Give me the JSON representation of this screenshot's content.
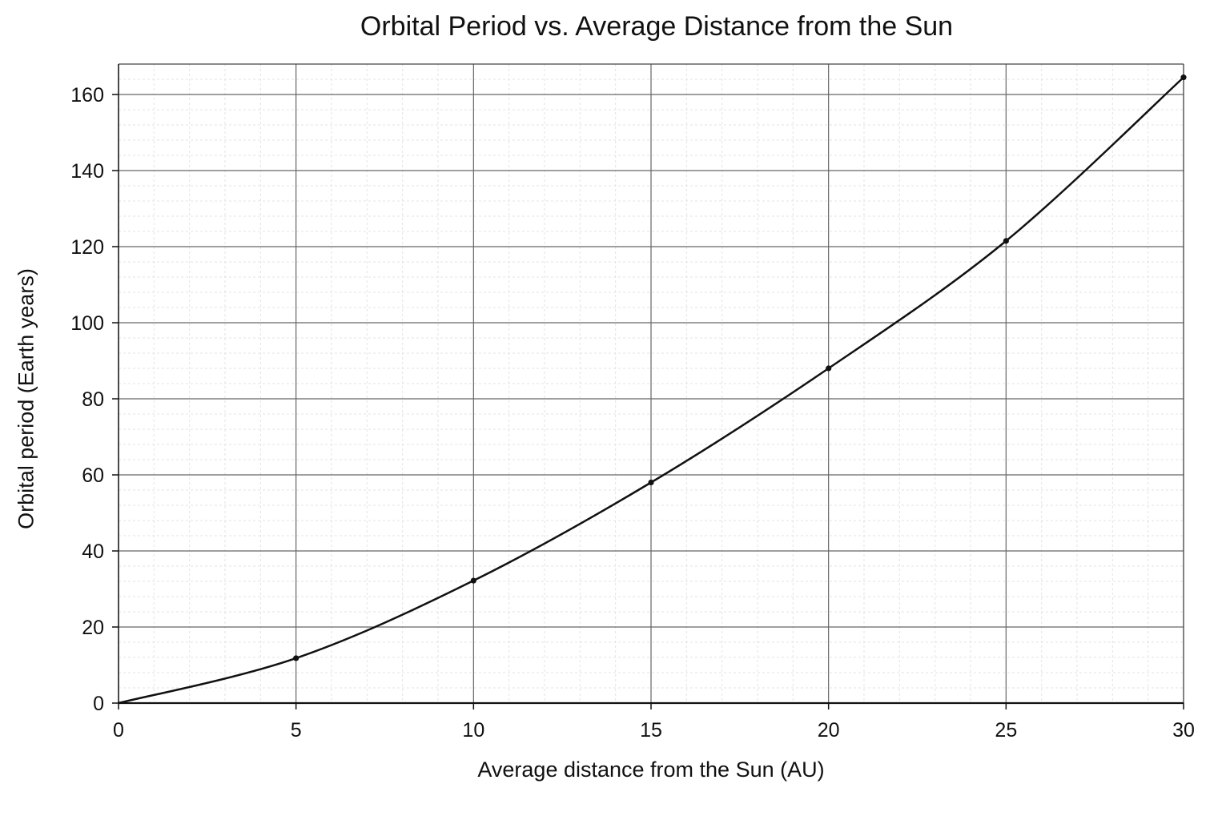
{
  "chart_data": {
    "type": "line",
    "title": "Orbital Period vs. Average Distance from the Sun",
    "xlabel": "Average distance from the Sun (AU)",
    "ylabel": "Orbital period (Earth years)",
    "xlim": [
      0,
      30
    ],
    "ylim": [
      0,
      168
    ],
    "x_ticks": [
      0,
      5,
      10,
      15,
      20,
      25,
      30
    ],
    "y_ticks": [
      0,
      20,
      40,
      60,
      80,
      100,
      120,
      140,
      160
    ],
    "grid": true,
    "minor_grid": true,
    "legend": "none",
    "line_color": "#111111",
    "series": [
      {
        "x": [
          0,
          5,
          10,
          15,
          20,
          25,
          30
        ],
        "y": [
          0,
          11.8,
          32.2,
          58,
          88,
          121.5,
          164.5
        ]
      }
    ],
    "markers": {
      "x": [
        5,
        10,
        15,
        20,
        25,
        30
      ],
      "y": [
        11.8,
        32.2,
        58,
        88,
        121.5,
        164.5
      ]
    }
  }
}
